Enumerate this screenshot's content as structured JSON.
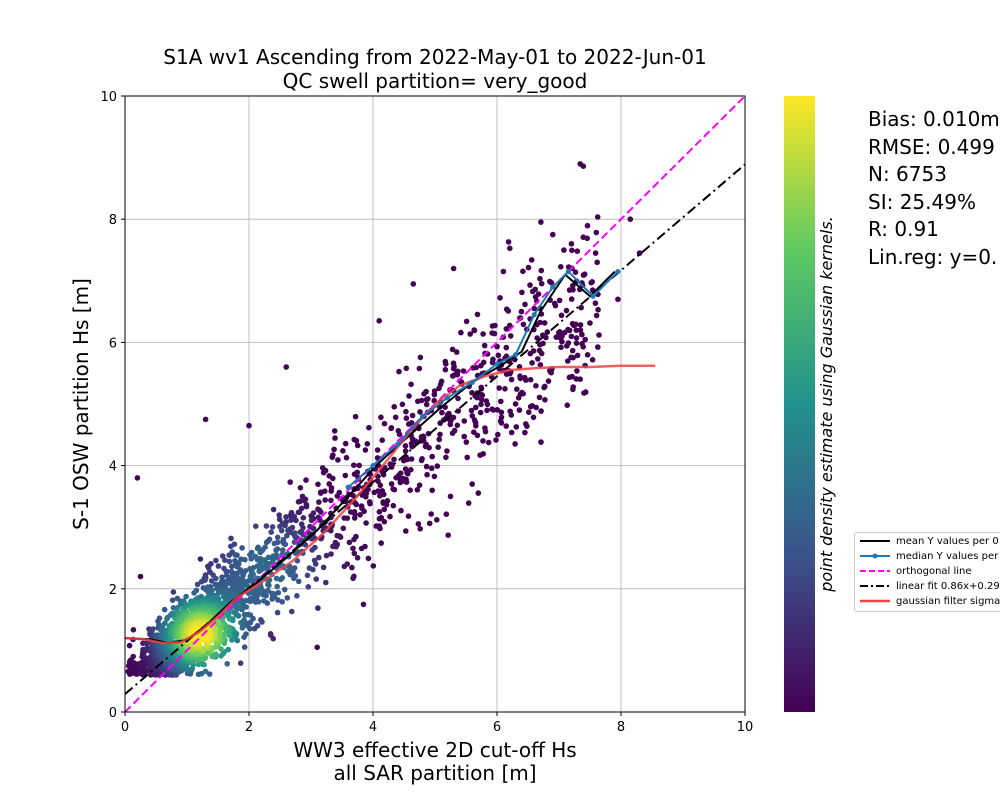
{
  "chart_data": {
    "type": "scatter",
    "title": [
      "S1A wv1 Ascending from 2022-May-01 to 2022-Jun-01",
      "QC swell partition= very_good"
    ],
    "xlabel": [
      "WW3 effective 2D cut-off Hs",
      "all SAR partition [m]"
    ],
    "ylabel": "S-1 OSW partition Hs [m]",
    "xlim": [
      0,
      10
    ],
    "ylim": [
      0,
      10
    ],
    "xticks": [
      "0",
      "2",
      "4",
      "6",
      "8",
      "10"
    ],
    "yticks": [
      "0",
      "2",
      "4",
      "6",
      "8",
      "10"
    ],
    "grid": true,
    "colorbar_label": "point density estimate using Gaussian kernels.",
    "colormap": [
      "#440154",
      "#3b528b",
      "#21918c",
      "#5ec962",
      "#fde725"
    ],
    "stats": [
      "Bias: 0.010m",
      "RMSE: 0.499",
      "N: 6753",
      "SI: 25.49%",
      "R: 0.91",
      "Lin.reg: y=0."
    ],
    "scatter_model": {
      "count": 2600,
      "x_mean": 2.2,
      "spread": 0.5,
      "core": [
        1.2,
        1.25
      ]
    },
    "outliers": [
      [
        5.3,
        7.2
      ],
      [
        6.9,
        7.75
      ],
      [
        7.2,
        7.6
      ],
      [
        7.95,
        6.7
      ],
      [
        6.6,
        6.55
      ],
      [
        4.65,
        6.95
      ],
      [
        4.1,
        6.35
      ],
      [
        2.6,
        5.6
      ],
      [
        2.0,
        4.65
      ],
      [
        1.3,
        4.75
      ],
      [
        5.6,
        3.7
      ],
      [
        5.25,
        3.5
      ],
      [
        4.6,
        3.6
      ],
      [
        2.35,
        1.25
      ],
      [
        3.1,
        1.05
      ],
      [
        0.2,
        3.8
      ],
      [
        0.25,
        2.2
      ],
      [
        6.35,
        5.1
      ],
      [
        8.3,
        7.45
      ],
      [
        8.15,
        8.0
      ]
    ],
    "series": [
      {
        "name": "mean Y values per 0",
        "style": "solid",
        "color": "#000000",
        "x": [
          0.0,
          0.4,
          0.7,
          1.0,
          1.3,
          1.7,
          2.1,
          2.6,
          3.1,
          3.6,
          4.1,
          4.6,
          5.1,
          5.6,
          6.1,
          6.4,
          6.7,
          7.1,
          7.5,
          7.9
        ],
        "y": [
          1.2,
          1.18,
          1.12,
          1.17,
          1.4,
          1.78,
          2.08,
          2.5,
          2.95,
          3.5,
          4.05,
          4.5,
          4.95,
          5.35,
          5.65,
          5.85,
          6.5,
          7.1,
          6.75,
          7.15
        ]
      },
      {
        "name": "median Y values per",
        "style": "solid-markers",
        "color": "#1f77b4",
        "x": [
          3.6,
          4.0,
          4.4,
          4.8,
          5.2,
          5.6,
          6.0,
          6.3,
          6.6,
          6.9,
          7.15,
          7.55,
          7.95
        ],
        "y": [
          3.65,
          4.0,
          4.35,
          4.8,
          5.1,
          5.35,
          5.65,
          5.8,
          6.45,
          6.9,
          7.15,
          6.75,
          7.15
        ]
      },
      {
        "name": "orthogonal line",
        "style": "dashed",
        "color": "#ff00ff",
        "x": [
          0,
          10
        ],
        "y": [
          0,
          10
        ]
      },
      {
        "name": "linear fit 0.86x+0.29",
        "style": "dashdot",
        "color": "#000000",
        "x": [
          0,
          10
        ],
        "y": [
          0.29,
          8.89
        ]
      },
      {
        "name": "gaussian filter sigma",
        "style": "solid",
        "color": "#ef4444",
        "x": [
          0.0,
          0.3,
          0.6,
          0.9,
          1.2,
          1.5,
          1.8,
          2.2,
          2.7,
          3.2,
          3.7,
          4.2,
          4.6,
          5.0,
          5.4,
          5.8,
          6.2,
          6.6,
          7.0,
          7.5,
          8.0,
          8.55
        ],
        "y": [
          1.2,
          1.18,
          1.12,
          1.13,
          1.3,
          1.55,
          1.85,
          2.1,
          2.45,
          2.9,
          3.45,
          4.05,
          4.55,
          5.0,
          5.3,
          5.45,
          5.55,
          5.58,
          5.6,
          5.6,
          5.62,
          5.62
        ]
      }
    ]
  }
}
